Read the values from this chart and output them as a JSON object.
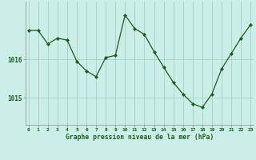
{
  "x": [
    0,
    1,
    2,
    3,
    4,
    5,
    6,
    7,
    8,
    9,
    10,
    11,
    12,
    13,
    14,
    15,
    16,
    17,
    18,
    19,
    20,
    21,
    22,
    23
  ],
  "y": [
    1016.75,
    1016.75,
    1016.4,
    1016.55,
    1016.5,
    1015.95,
    1015.7,
    1015.55,
    1016.05,
    1016.1,
    1017.15,
    1016.8,
    1016.65,
    1016.2,
    1015.8,
    1015.4,
    1015.1,
    1014.85,
    1014.75,
    1015.1,
    1015.75,
    1016.15,
    1016.55,
    1016.9
  ],
  "line_color": "#1a5c1a",
  "marker": "D",
  "marker_size": 2.2,
  "bg_color": "#cceee8",
  "grid_color": "#aad4cc",
  "xlabel": "Graphe pression niveau de la mer (hPa)",
  "xlabel_color": "#1a5c1a",
  "tick_color": "#1a5c1a",
  "ytick_positions": [
    1015.0,
    1016.0
  ],
  "ytick_labels": [
    "1015",
    "1016"
  ],
  "ylim": [
    1014.3,
    1017.5
  ],
  "xlim": [
    -0.3,
    23.3
  ],
  "xtick_labels": [
    "0",
    "1",
    "2",
    "3",
    "4",
    "5",
    "6",
    "7",
    "8",
    "9",
    "10",
    "11",
    "12",
    "13",
    "14",
    "15",
    "16",
    "17",
    "18",
    "19",
    "20",
    "21",
    "22",
    "23"
  ]
}
